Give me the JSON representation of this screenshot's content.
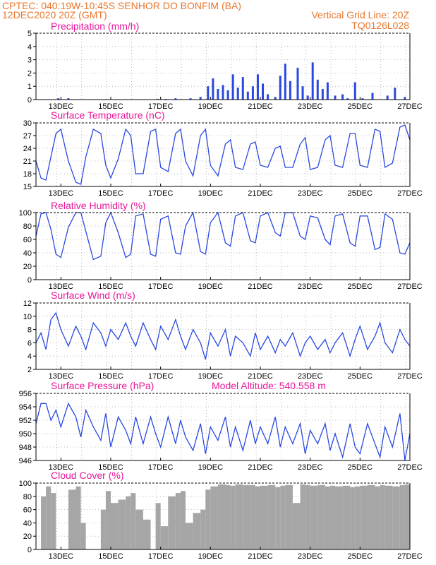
{
  "header": {
    "line1_left": "CPTEC:  040:19W-10:45S   SENHOR DO BONFIM (BA)",
    "line2_left": "12DEC2020 20Z (GMT)",
    "line2_right": "Vertical Grid Line: 20Z",
    "line3_right": "TQ0126L028"
  },
  "colors": {
    "header": "#e8762c",
    "title": "#e8179a",
    "series": "#2a48e0",
    "cloud": "#a6a6a6"
  },
  "chart_data": [
    {
      "type": "bar",
      "title": "Precipitation (mm/h)",
      "ylim": [
        0,
        5
      ],
      "yticks": [
        "0",
        "1",
        "2",
        "3",
        "4",
        "5"
      ],
      "xticks": [
        "13DEC",
        "15DEC",
        "17DEC",
        "19DEC",
        "21DEC",
        "23DEC",
        "25DEC",
        "27DEC"
      ],
      "x_days": [
        12.9,
        13.3,
        16.9,
        17.2,
        17.6,
        18.2,
        18.6,
        18.9,
        19.1,
        19.3,
        19.5,
        19.7,
        19.9,
        20.1,
        20.3,
        20.5,
        20.7,
        20.9,
        21.1,
        21.3,
        21.6,
        21.8,
        22.0,
        22.2,
        22.5,
        22.7,
        22.9,
        23.1,
        23.3,
        23.5,
        23.7,
        24.0,
        24.3,
        24.5,
        24.8,
        25.1,
        25.5,
        26.1,
        26.4,
        26.8
      ],
      "values": [
        0.1,
        0.1,
        0.05,
        0.05,
        0.1,
        0.1,
        0.2,
        1.0,
        1.6,
        0.8,
        1.1,
        0.7,
        1.9,
        0.9,
        1.7,
        0.6,
        1.0,
        1.9,
        1.2,
        0.4,
        0.2,
        1.8,
        2.7,
        1.4,
        2.4,
        1.0,
        0.3,
        2.8,
        1.5,
        0.8,
        1.3,
        0.3,
        0.4,
        0.1,
        1.3,
        0.1,
        0.5,
        0.3,
        0.9,
        0.2
      ]
    },
    {
      "type": "line",
      "title": "Surface Temperature (nC)",
      "ylim": [
        15,
        30
      ],
      "yticks": [
        "15",
        "18",
        "21",
        "24",
        "27",
        "30"
      ],
      "xticks": [
        "13DEC",
        "15DEC",
        "17DEC",
        "19DEC",
        "21DEC",
        "23DEC",
        "25DEC",
        "27DEC"
      ],
      "series": [
        {
          "x_days": [
            12.0,
            12.2,
            12.4,
            12.6,
            12.8,
            13.0,
            13.3,
            13.6,
            13.8,
            14.0,
            14.3,
            14.6,
            14.8,
            15.0,
            15.3,
            15.6,
            15.8,
            16.0,
            16.3,
            16.6,
            16.8,
            17.0,
            17.3,
            17.6,
            17.8,
            18.0,
            18.3,
            18.6,
            18.8,
            19.0,
            19.3,
            19.6,
            19.8,
            20.0,
            20.3,
            20.6,
            20.8,
            21.0,
            21.3,
            21.6,
            21.8,
            22.0,
            22.3,
            22.6,
            22.8,
            23.0,
            23.3,
            23.6,
            23.8,
            24.0,
            24.3,
            24.6,
            24.8,
            25.0,
            25.3,
            25.6,
            25.8,
            26.0,
            26.3,
            26.6,
            26.8,
            27.0
          ],
          "values": [
            21.0,
            17.0,
            16.5,
            22.0,
            27.5,
            28.5,
            21.0,
            16.0,
            15.5,
            22.0,
            28.5,
            27.5,
            20.0,
            17.0,
            21.5,
            28.5,
            27.0,
            18.0,
            18.0,
            28.0,
            28.5,
            19.5,
            18.5,
            27.5,
            28.5,
            21.0,
            17.5,
            27.0,
            28.5,
            20.0,
            17.5,
            25.0,
            26.0,
            19.5,
            19.0,
            25.0,
            25.5,
            20.0,
            19.5,
            24.0,
            24.5,
            19.5,
            19.5,
            25.0,
            26.5,
            19.0,
            19.5,
            26.0,
            27.0,
            20.0,
            19.5,
            27.5,
            27.5,
            20.0,
            19.5,
            28.5,
            28.0,
            19.5,
            20.5,
            29.0,
            29.5,
            26.0
          ]
        }
      ]
    },
    {
      "type": "line",
      "title": "Relative Humidity (%)",
      "ylim": [
        0,
        100
      ],
      "yticks": [
        "0",
        "20",
        "40",
        "60",
        "80",
        "100"
      ],
      "xticks": [
        "13DEC",
        "15DEC",
        "17DEC",
        "19DEC",
        "21DEC",
        "23DEC",
        "25DEC",
        "27DEC"
      ],
      "series": [
        {
          "x_days": [
            12.0,
            12.2,
            12.4,
            12.6,
            12.8,
            13.0,
            13.3,
            13.6,
            13.8,
            14.0,
            14.3,
            14.6,
            14.8,
            15.0,
            15.3,
            15.6,
            15.8,
            16.0,
            16.3,
            16.6,
            16.8,
            17.0,
            17.3,
            17.6,
            17.8,
            18.0,
            18.3,
            18.6,
            18.8,
            19.0,
            19.3,
            19.6,
            19.8,
            20.0,
            20.3,
            20.6,
            20.8,
            21.0,
            21.3,
            21.6,
            21.8,
            22.0,
            22.3,
            22.6,
            22.8,
            23.0,
            23.3,
            23.6,
            23.8,
            24.0,
            24.3,
            24.6,
            24.8,
            25.0,
            25.3,
            25.6,
            25.8,
            26.0,
            26.3,
            26.6,
            26.8,
            27.0
          ],
          "values": [
            65.0,
            98.0,
            100.0,
            75.0,
            38.0,
            33.0,
            78.0,
            100.0,
            100.0,
            72.0,
            30.0,
            35.0,
            85.0,
            100.0,
            70.0,
            33.0,
            38.0,
            95.0,
            98.0,
            38.0,
            35.0,
            90.0,
            95.0,
            40.0,
            38.0,
            80.0,
            100.0,
            42.0,
            38.0,
            85.0,
            100.0,
            55.0,
            50.0,
            95.0,
            100.0,
            58.0,
            55.0,
            95.0,
            100.0,
            70.0,
            65.0,
            100.0,
            100.0,
            65.0,
            60.0,
            95.0,
            92.0,
            60.0,
            52.0,
            95.0,
            98.0,
            55.0,
            50.0,
            95.0,
            95.0,
            45.0,
            48.0,
            98.0,
            90.0,
            40.0,
            38.0,
            55.0
          ]
        }
      ]
    },
    {
      "type": "line",
      "title": "Surface Wind (m/s)",
      "ylim": [
        2,
        12
      ],
      "yticks": [
        "2",
        "4",
        "6",
        "8",
        "10",
        "12"
      ],
      "xticks": [
        "13DEC",
        "15DEC",
        "17DEC",
        "19DEC",
        "21DEC",
        "23DEC",
        "25DEC",
        "27DEC"
      ],
      "series": [
        {
          "x_days": [
            12.0,
            12.2,
            12.4,
            12.6,
            12.8,
            13.0,
            13.3,
            13.6,
            13.8,
            14.0,
            14.3,
            14.6,
            14.8,
            15.0,
            15.3,
            15.6,
            15.8,
            16.0,
            16.3,
            16.6,
            16.8,
            17.0,
            17.3,
            17.6,
            17.8,
            18.0,
            18.3,
            18.6,
            18.8,
            19.0,
            19.3,
            19.6,
            19.8,
            20.0,
            20.3,
            20.6,
            20.8,
            21.0,
            21.3,
            21.6,
            21.8,
            22.0,
            22.3,
            22.6,
            22.8,
            23.0,
            23.3,
            23.6,
            23.8,
            24.0,
            24.3,
            24.6,
            24.8,
            25.0,
            25.3,
            25.6,
            25.8,
            26.0,
            26.3,
            26.6,
            26.8,
            27.0
          ],
          "values": [
            6.0,
            7.5,
            5.0,
            9.5,
            10.5,
            8.0,
            5.5,
            8.5,
            7.0,
            5.0,
            9.0,
            7.5,
            5.5,
            8.0,
            6.5,
            9.0,
            7.0,
            5.5,
            9.0,
            6.5,
            5.0,
            8.5,
            6.5,
            9.5,
            7.0,
            5.0,
            8.0,
            6.0,
            3.5,
            7.5,
            5.5,
            8.0,
            4.0,
            7.0,
            6.0,
            4.0,
            7.5,
            5.0,
            7.0,
            4.5,
            6.5,
            5.5,
            7.5,
            4.0,
            6.0,
            7.0,
            5.0,
            6.5,
            4.5,
            6.0,
            7.5,
            4.0,
            6.5,
            8.5,
            5.0,
            7.0,
            9.0,
            6.0,
            4.5,
            8.0,
            6.5,
            5.5
          ]
        }
      ]
    },
    {
      "type": "line",
      "title": "Surface Pressure (hPa)",
      "annotation": "Model Altitude: 540.558  m",
      "ylim": [
        946,
        956
      ],
      "yticks": [
        "946",
        "948",
        "950",
        "952",
        "954",
        "956"
      ],
      "xticks": [
        "13DEC",
        "15DEC",
        "17DEC",
        "19DEC",
        "21DEC",
        "23DEC",
        "25DEC",
        "27DEC"
      ],
      "series": [
        {
          "x_days": [
            12.0,
            12.2,
            12.4,
            12.6,
            12.8,
            13.0,
            13.3,
            13.6,
            13.8,
            14.0,
            14.3,
            14.6,
            14.8,
            15.0,
            15.3,
            15.6,
            15.8,
            16.0,
            16.3,
            16.6,
            16.8,
            17.0,
            17.3,
            17.6,
            17.8,
            18.0,
            18.3,
            18.6,
            18.8,
            19.0,
            19.3,
            19.6,
            19.8,
            20.0,
            20.3,
            20.6,
            20.8,
            21.0,
            21.3,
            21.6,
            21.8,
            22.0,
            22.3,
            22.6,
            22.8,
            23.0,
            23.3,
            23.6,
            23.8,
            24.0,
            24.3,
            24.6,
            24.8,
            25.0,
            25.3,
            25.6,
            25.8,
            26.0,
            26.3,
            26.6,
            26.8,
            27.0
          ],
          "values": [
            951.5,
            954.5,
            954.5,
            952.0,
            953.5,
            951.0,
            954.5,
            952.5,
            949.5,
            953.5,
            951.0,
            949.0,
            953.0,
            948.0,
            952.5,
            950.5,
            948.5,
            952.5,
            948.5,
            952.5,
            950.0,
            948.0,
            952.5,
            948.5,
            952.0,
            949.5,
            947.5,
            951.5,
            947.0,
            951.0,
            949.0,
            952.5,
            948.0,
            951.0,
            947.5,
            952.0,
            948.5,
            951.0,
            948.5,
            952.5,
            948.0,
            951.0,
            948.5,
            951.5,
            947.0,
            950.5,
            948.5,
            951.5,
            947.5,
            950.0,
            946.5,
            951.5,
            948.0,
            947.0,
            951.5,
            948.5,
            946.5,
            951.0,
            948.0,
            953.0,
            946.0,
            950.0
          ]
        }
      ]
    },
    {
      "type": "area",
      "title": "Cloud Cover (%)",
      "ylim": [
        0,
        100
      ],
      "yticks": [
        "0",
        "20",
        "40",
        "60",
        "80",
        "100"
      ],
      "xticks": [
        "13DEC",
        "15DEC",
        "17DEC",
        "19DEC",
        "21DEC",
        "23DEC",
        "25DEC",
        "27DEC"
      ],
      "series": [
        {
          "x_days": [
            12.0,
            12.2,
            12.4,
            12.6,
            12.8,
            13.0,
            13.3,
            13.6,
            13.8,
            14.0,
            14.3,
            14.6,
            14.8,
            15.0,
            15.3,
            15.6,
            15.8,
            16.0,
            16.3,
            16.6,
            16.8,
            17.0,
            17.3,
            17.6,
            17.8,
            18.0,
            18.3,
            18.6,
            18.8,
            19.0,
            19.3,
            19.6,
            19.8,
            20.0,
            20.3,
            20.6,
            20.8,
            21.0,
            21.3,
            21.6,
            21.8,
            22.0,
            22.3,
            22.6,
            22.8,
            23.0,
            23.3,
            23.6,
            23.8,
            24.0,
            24.3,
            24.6,
            24.8,
            25.0,
            25.3,
            25.6,
            25.8,
            26.0,
            26.3,
            26.6,
            26.8,
            27.0
          ],
          "values": [
            0,
            80,
            95,
            85,
            0,
            0,
            90,
            95,
            40,
            0,
            0,
            60,
            88,
            70,
            75,
            80,
            85,
            60,
            45,
            0,
            70,
            35,
            80,
            85,
            88,
            40,
            55,
            60,
            90,
            95,
            98,
            97,
            96,
            98,
            97,
            97,
            95,
            96,
            97,
            94,
            96,
            97,
            70,
            98,
            97,
            96,
            97,
            95,
            96,
            95,
            96,
            94,
            95,
            96,
            97,
            95,
            97,
            96,
            95,
            97,
            98,
            0
          ]
        }
      ]
    }
  ]
}
